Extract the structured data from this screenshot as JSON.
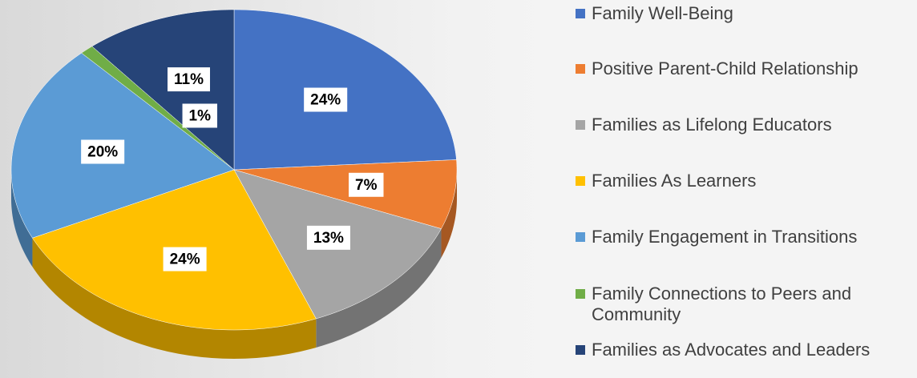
{
  "chart_data": {
    "type": "pie",
    "categories": [
      "Family Well-Being",
      "Positive Parent-Child Relationship",
      "Families as Lifelong Educators",
      "Families As Learners",
      "Family Engagement in Transitions",
      "Family Connections to Peers and Community",
      "Families as Advocates and Leaders"
    ],
    "values": [
      24,
      7,
      13,
      24,
      20,
      1,
      11
    ],
    "value_labels": [
      "24%",
      "7%",
      "13%",
      "24%",
      "20%",
      "1%",
      "11%"
    ],
    "colors": [
      "#4472c4",
      "#ed7d31",
      "#a5a5a5",
      "#ffc000",
      "#5b9bd5",
      "#70ad47",
      "#264478"
    ],
    "legend": "right"
  }
}
